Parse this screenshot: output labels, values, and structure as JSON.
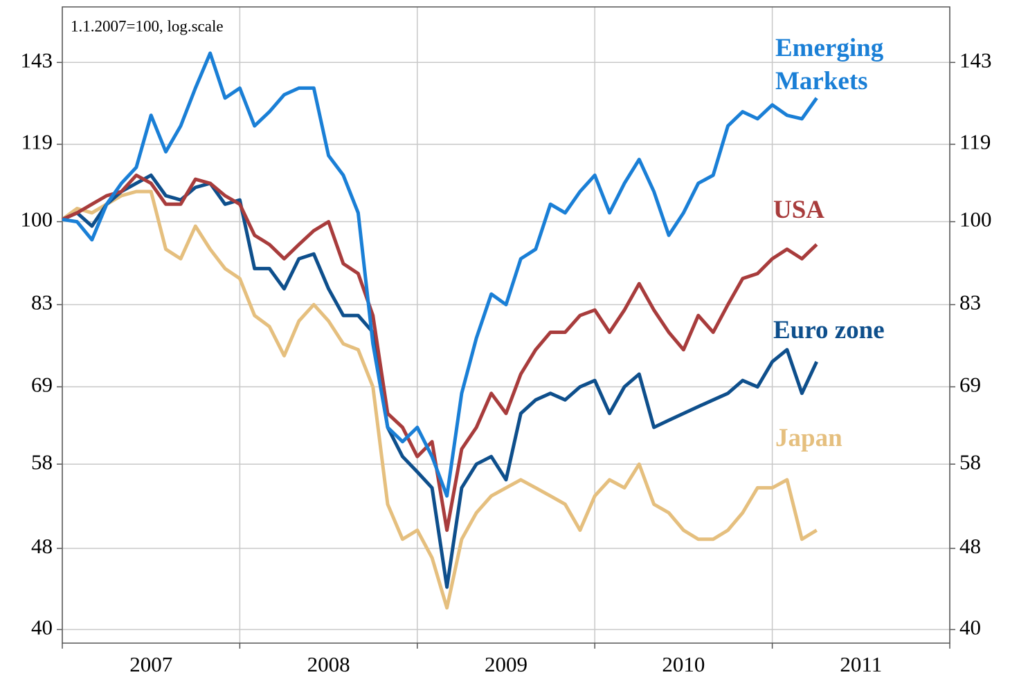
{
  "chart_data": {
    "type": "line",
    "annotation": "1.1.2007=100, log.scale",
    "log_scale": true,
    "grid": true,
    "x": [
      2007,
      2007.083,
      2007.167,
      2007.25,
      2007.333,
      2007.417,
      2007.5,
      2007.583,
      2007.667,
      2007.75,
      2007.833,
      2007.917,
      2008,
      2008.083,
      2008.167,
      2008.25,
      2008.333,
      2008.417,
      2008.5,
      2008.583,
      2008.667,
      2008.75,
      2008.833,
      2008.917,
      2009,
      2009.083,
      2009.167,
      2009.25,
      2009.333,
      2009.417,
      2009.5,
      2009.583,
      2009.667,
      2009.75,
      2009.833,
      2009.917,
      2010,
      2010.083,
      2010.167,
      2010.25,
      2010.333,
      2010.417,
      2010.5,
      2010.583,
      2010.667,
      2010.75,
      2010.833,
      2010.917,
      2011,
      2011.083,
      2011.167,
      2011.25
    ],
    "xlim": [
      2007,
      2012
    ],
    "xticks": [
      {
        "value": 2007.5,
        "label": "2007"
      },
      {
        "value": 2008.5,
        "label": "2008"
      },
      {
        "value": 2009.5,
        "label": "2009"
      },
      {
        "value": 2010.5,
        "label": "2010"
      },
      {
        "value": 2011.5,
        "label": "2011"
      }
    ],
    "xgrid": [
      2007,
      2008,
      2009,
      2010,
      2011,
      2012
    ],
    "ylim": [
      38.8,
      162
    ],
    "yticks": [
      40,
      48,
      58,
      69,
      83,
      100,
      119,
      143
    ],
    "series": [
      {
        "name": "Emerging Markets",
        "color": "#1a7fd6",
        "values": [
          100.5,
          100,
          96,
          104,
          109,
          113,
          127,
          117,
          124,
          135,
          146,
          132,
          135,
          124,
          128,
          133,
          135,
          135,
          116,
          111,
          102,
          76,
          63,
          61,
          63,
          59,
          54,
          68,
          77,
          85,
          83,
          92,
          94,
          104,
          102,
          107,
          111,
          102,
          109,
          115,
          107,
          97,
          102,
          109,
          111,
          124,
          128,
          126,
          130,
          127,
          126,
          132
        ]
      },
      {
        "name": "USA",
        "color": "#a83c3c",
        "values": [
          100.5,
          102,
          104,
          106,
          107,
          111,
          109,
          104,
          104,
          110,
          109,
          106,
          104,
          97,
          95,
          92,
          95,
          98,
          100,
          91,
          89,
          81,
          65,
          63,
          59,
          61,
          50,
          60,
          63,
          68,
          65,
          71,
          75,
          78,
          78,
          81,
          82,
          78,
          82,
          87,
          82,
          78,
          75,
          81,
          78,
          83,
          88,
          89,
          92,
          94,
          92,
          95
        ]
      },
      {
        "name": "Euro zone",
        "color": "#0e4f8c",
        "values": [
          100.5,
          102,
          99,
          104,
          107,
          109,
          111,
          106,
          105,
          108,
          109,
          104,
          105,
          90,
          90,
          86,
          92,
          93,
          86,
          81,
          81,
          78,
          63,
          59,
          57,
          55,
          44,
          55,
          58,
          59,
          56,
          65,
          67,
          68,
          67,
          69,
          70,
          65,
          69,
          71,
          63,
          64,
          65,
          66,
          67,
          68,
          70,
          69,
          73,
          75,
          68,
          73
        ]
      },
      {
        "name": "Japan",
        "color": "#e5bf7e",
        "values": [
          100.5,
          103,
          102,
          104,
          106,
          107,
          107,
          94,
          92,
          99,
          94,
          90,
          88,
          81,
          79,
          74,
          80,
          83,
          80,
          76,
          75,
          69,
          53,
          49,
          50,
          47,
          42,
          49,
          52,
          54,
          55,
          56,
          55,
          54,
          53,
          50,
          54,
          56,
          55,
          58,
          53,
          52,
          50,
          49,
          49,
          50,
          52,
          55,
          55,
          56,
          49,
          50
        ]
      }
    ]
  }
}
